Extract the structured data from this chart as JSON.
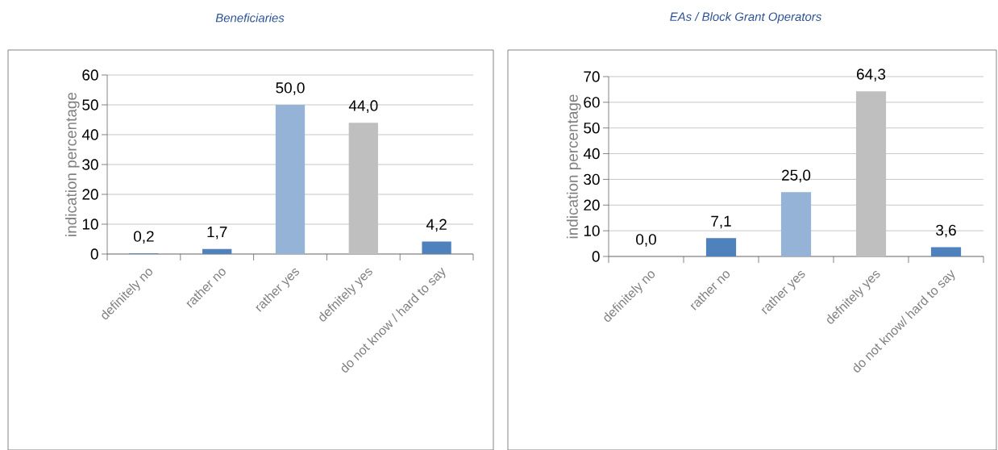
{
  "chart_data": [
    {
      "type": "bar",
      "title": "Beneficiaries",
      "ylabel": "indication percentage",
      "categories": [
        "definitely no",
        "rather no",
        "rather yes",
        "defnitely yes",
        "do not know / hard to say"
      ],
      "values": [
        0.2,
        1.7,
        50.0,
        44.0,
        4.2
      ],
      "value_labels": [
        "0,2",
        "1,7",
        "50,0",
        "44,0",
        "4,2"
      ],
      "colors": [
        "#4f81bd",
        "#4f81bd",
        "#95b3d7",
        "#bfbfbf",
        "#4f81bd"
      ],
      "ylim": [
        0,
        60
      ],
      "yticks": [
        0,
        10,
        20,
        30,
        40,
        50,
        60
      ],
      "grid": "y"
    },
    {
      "type": "bar",
      "title": "EAs / Block Grant Operators",
      "ylabel": "indication percentage",
      "categories": [
        "definitely no",
        "rather no",
        "rather yes",
        "defnitely yes",
        "do not know/ hard to say"
      ],
      "values": [
        0.0,
        7.1,
        25.0,
        64.3,
        3.6
      ],
      "value_labels": [
        "0,0",
        "7,1",
        "25,0",
        "64,3",
        "3,6"
      ],
      "colors": [
        "#4f81bd",
        "#4f81bd",
        "#95b3d7",
        "#bfbfbf",
        "#4f81bd"
      ],
      "ylim": [
        0,
        70
      ],
      "yticks": [
        0,
        10,
        20,
        30,
        40,
        50,
        60,
        70
      ],
      "grid": "y"
    }
  ]
}
